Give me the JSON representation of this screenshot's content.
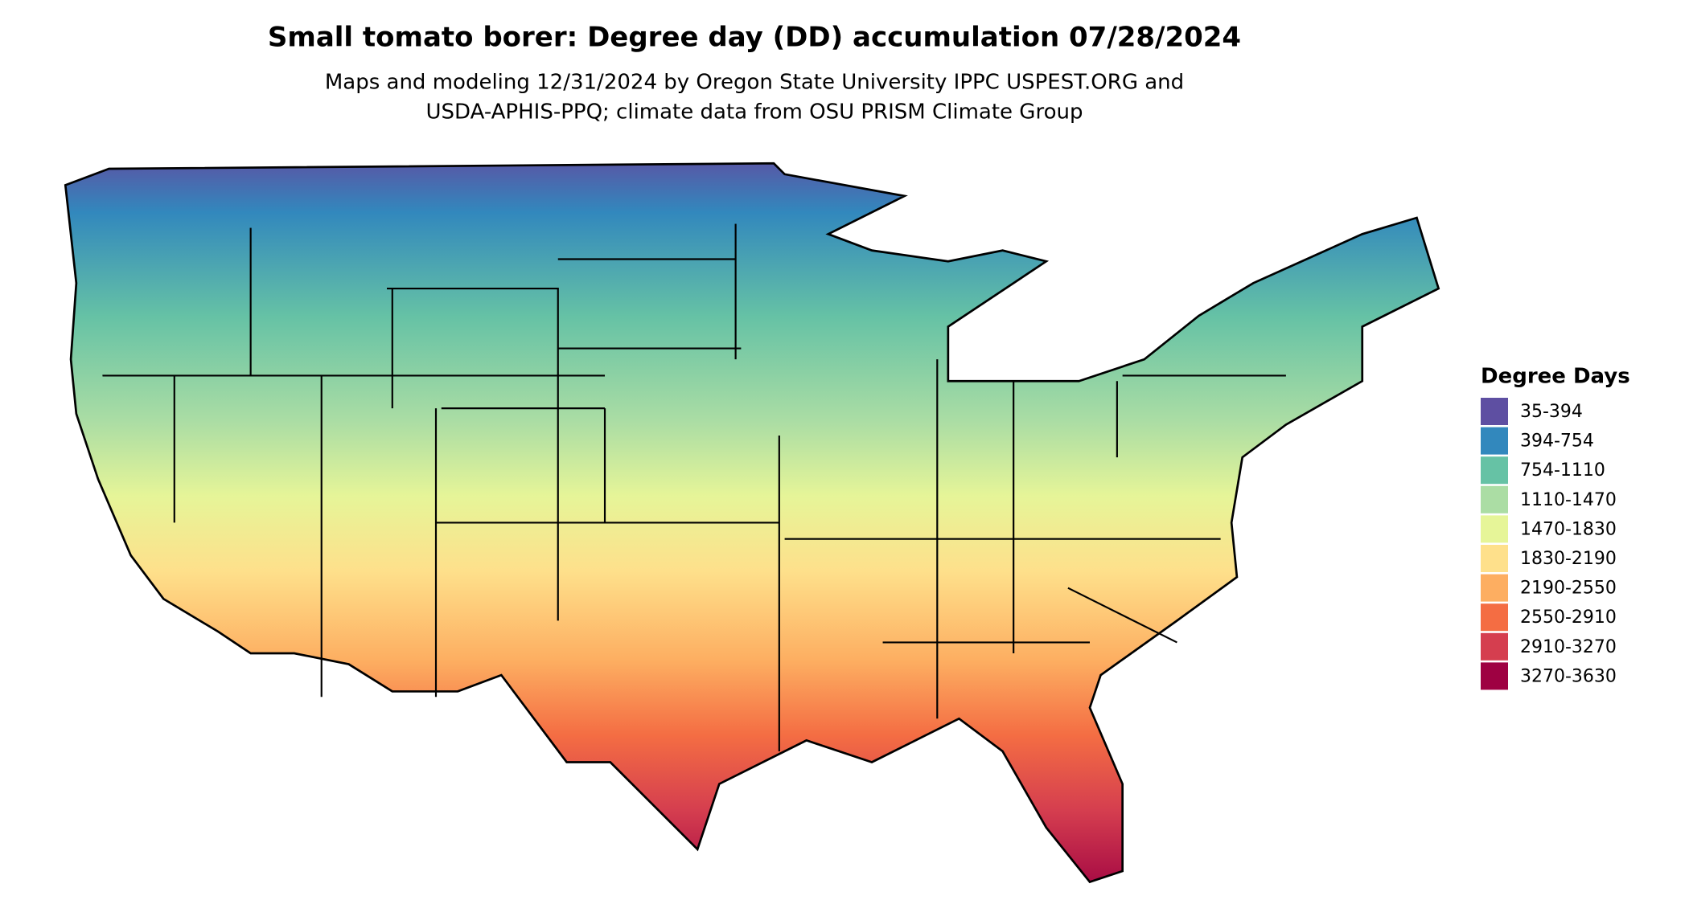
{
  "title": "Small tomato borer: Degree day (DD) accumulation 07/28/2024",
  "subtitle": [
    "Maps and modeling 12/31/2024 by Oregon State University IPPC USPEST.ORG and",
    "USDA-APHIS-PPQ; climate data from OSU PRISM Climate Group"
  ],
  "legend": {
    "title": "Degree Days",
    "items": [
      {
        "label": "35-394",
        "color": "#5e4fa2"
      },
      {
        "label": "394-754",
        "color": "#3288bd"
      },
      {
        "label": "754-1110",
        "color": "#66c2a5"
      },
      {
        "label": "1110-1470",
        "color": "#abdda4"
      },
      {
        "label": "1470-1830",
        "color": "#e6f598"
      },
      {
        "label": "1830-2190",
        "color": "#fee08b"
      },
      {
        "label": "2190-2550",
        "color": "#fdae61"
      },
      {
        "label": "2550-2910",
        "color": "#f46d43"
      },
      {
        "label": "2910-3270",
        "color": "#d53e4f"
      },
      {
        "label": "3270-3630",
        "color": "#9e0142"
      }
    ]
  }
}
